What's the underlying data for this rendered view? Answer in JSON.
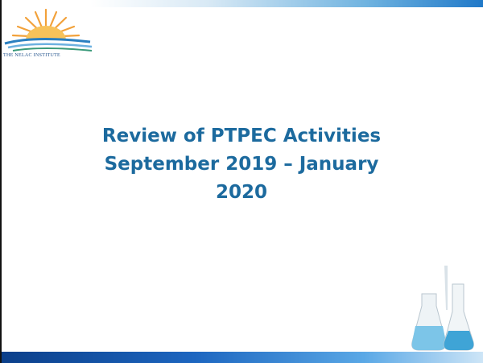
{
  "logo": {
    "text": "THE NELAC INSTITUTE"
  },
  "slide": {
    "title": "Review of PTPEC Activities September 2019 – January 2020"
  }
}
